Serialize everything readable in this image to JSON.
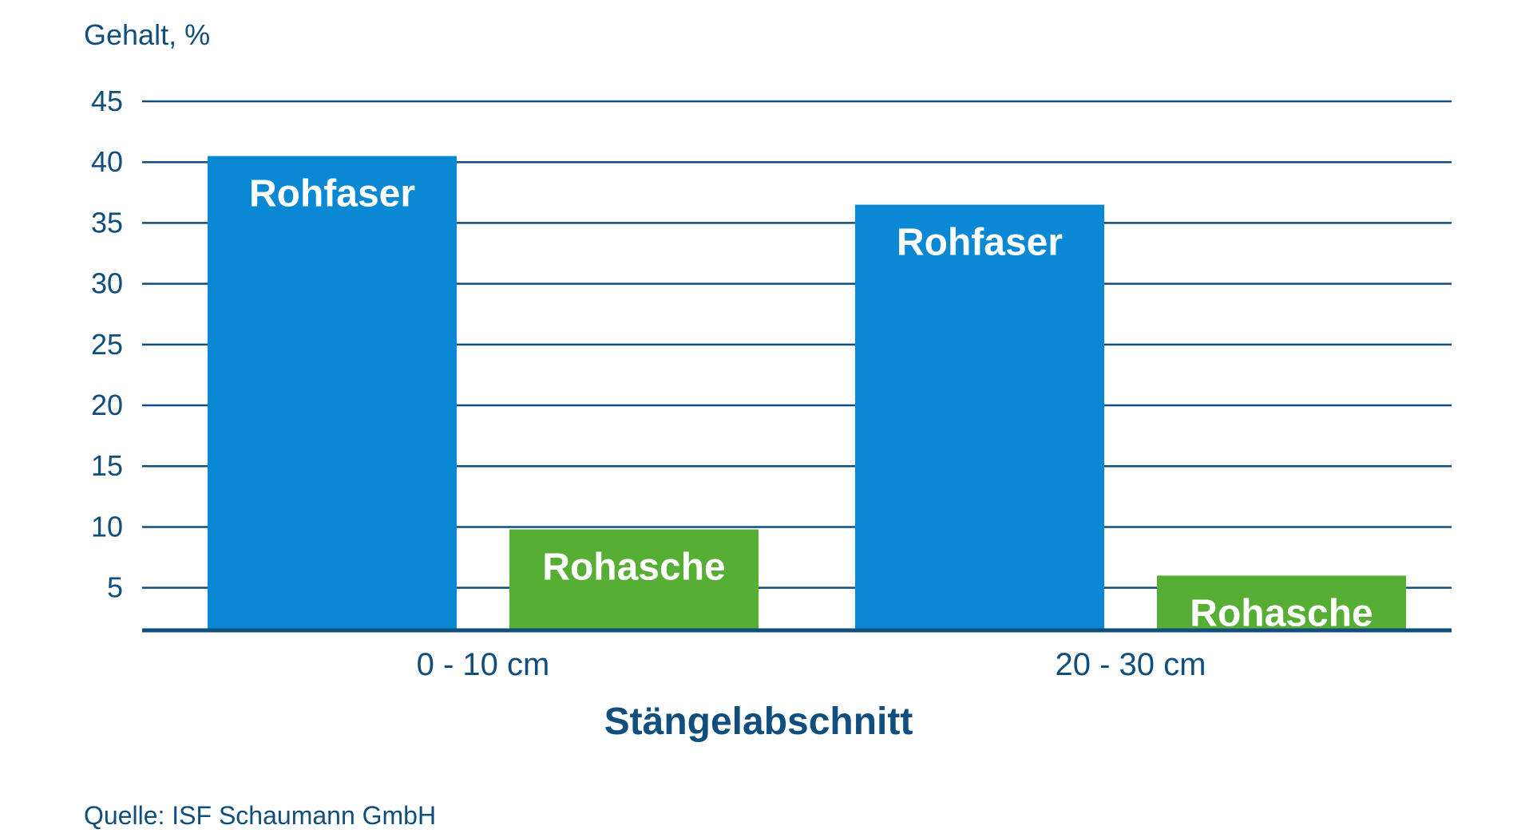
{
  "chart_data": {
    "type": "bar",
    "ylabel": "Gehalt, %",
    "xlabel": "Stängelabschnitt",
    "categories": [
      "0 - 10 cm",
      "20 - 30 cm"
    ],
    "series": [
      {
        "name": "Rohfaser",
        "values": [
          40.5,
          36.5
        ],
        "color": "#0A88D3"
      },
      {
        "name": "Rohasche",
        "values": [
          9.8,
          6.0
        ],
        "color": "#56AE35"
      }
    ],
    "ylim": [
      1.5,
      45
    ],
    "yticks": [
      5,
      10,
      15,
      20,
      25,
      30,
      35,
      40,
      45
    ],
    "grid": true,
    "legend": "none",
    "source": "Quelle: ISF Schaumann GmbH"
  },
  "colors": {
    "text": "#0F4E7D",
    "grid": "#0F4E7D",
    "bar_label_light": "#FFFFFF",
    "bar_label_dark": "#0F4E7D"
  }
}
